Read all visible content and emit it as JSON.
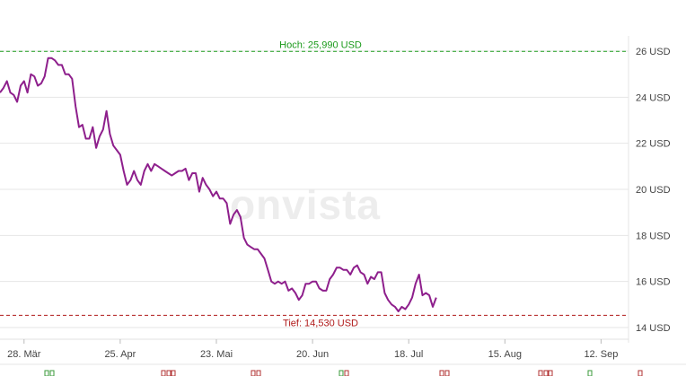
{
  "watermark": "onvista",
  "chart_data": {
    "type": "line",
    "currency_unit": "USD",
    "line_color": "#8e1f8c",
    "high": {
      "value": 25.99,
      "label": "Hoch: 25,990 USD",
      "color": "#1a9a1a"
    },
    "low": {
      "value": 14.53,
      "label": "Tief: 14,530 USD",
      "color": "#b01a1a"
    },
    "ylim": [
      14,
      26
    ],
    "y_ticks": [
      {
        "value": 26,
        "label": "26 USD"
      },
      {
        "value": 24,
        "label": "24 USD"
      },
      {
        "value": 22,
        "label": "22 USD"
      },
      {
        "value": 20,
        "label": "20 USD"
      },
      {
        "value": 18,
        "label": "18 USD"
      },
      {
        "value": 16,
        "label": "16 USD"
      },
      {
        "value": 14,
        "label": "14 USD"
      }
    ],
    "x_range": [
      "2024-03-21",
      "2024-09-20"
    ],
    "x_ticks": [
      {
        "date": "2024-03-28",
        "label": "28. Mär"
      },
      {
        "date": "2024-04-25",
        "label": "25. Apr"
      },
      {
        "date": "2024-05-23",
        "label": "23. Mai"
      },
      {
        "date": "2024-06-20",
        "label": "20. Jun"
      },
      {
        "date": "2024-07-18",
        "label": "18. Jul"
      },
      {
        "date": "2024-08-15",
        "label": "15. Aug"
      },
      {
        "date": "2024-09-12",
        "label": "12. Sep"
      }
    ],
    "grid": true,
    "series": [
      {
        "points": [
          [
            "2024-03-21",
            24.2
          ],
          [
            "2024-03-22",
            24.4
          ],
          [
            "2024-03-23",
            24.7
          ],
          [
            "2024-03-24",
            24.2
          ],
          [
            "2024-03-25",
            24.1
          ],
          [
            "2024-03-26",
            23.8
          ],
          [
            "2024-03-27",
            24.5
          ],
          [
            "2024-03-28",
            24.7
          ],
          [
            "2024-03-29",
            24.2
          ],
          [
            "2024-03-30",
            25.0
          ],
          [
            "2024-03-31",
            24.9
          ],
          [
            "2024-04-01",
            24.5
          ],
          [
            "2024-04-02",
            24.6
          ],
          [
            "2024-04-03",
            24.9
          ],
          [
            "2024-04-04",
            25.7
          ],
          [
            "2024-04-05",
            25.7
          ],
          [
            "2024-04-06",
            25.6
          ],
          [
            "2024-04-07",
            25.4
          ],
          [
            "2024-04-08",
            25.4
          ],
          [
            "2024-04-09",
            25.0
          ],
          [
            "2024-04-10",
            25.0
          ],
          [
            "2024-04-11",
            24.8
          ],
          [
            "2024-04-12",
            23.6
          ],
          [
            "2024-04-13",
            22.7
          ],
          [
            "2024-04-14",
            22.8
          ],
          [
            "2024-04-15",
            22.2
          ],
          [
            "2024-04-16",
            22.2
          ],
          [
            "2024-04-17",
            22.7
          ],
          [
            "2024-04-18",
            21.8
          ],
          [
            "2024-04-19",
            22.3
          ],
          [
            "2024-04-20",
            22.6
          ],
          [
            "2024-04-21",
            23.4
          ],
          [
            "2024-04-22",
            22.4
          ],
          [
            "2024-04-23",
            21.9
          ],
          [
            "2024-04-24",
            21.7
          ],
          [
            "2024-04-25",
            21.5
          ],
          [
            "2024-04-26",
            20.8
          ],
          [
            "2024-04-27",
            20.2
          ],
          [
            "2024-04-28",
            20.4
          ],
          [
            "2024-04-29",
            20.8
          ],
          [
            "2024-04-30",
            20.4
          ],
          [
            "2024-05-01",
            20.2
          ],
          [
            "2024-05-02",
            20.8
          ],
          [
            "2024-05-03",
            21.1
          ],
          [
            "2024-05-04",
            20.8
          ],
          [
            "2024-05-05",
            21.1
          ],
          [
            "2024-05-06",
            21.0
          ],
          [
            "2024-05-07",
            20.9
          ],
          [
            "2024-05-08",
            20.8
          ],
          [
            "2024-05-09",
            20.7
          ],
          [
            "2024-05-10",
            20.6
          ],
          [
            "2024-05-11",
            20.7
          ],
          [
            "2024-05-12",
            20.8
          ],
          [
            "2024-05-13",
            20.8
          ],
          [
            "2024-05-14",
            20.9
          ],
          [
            "2024-05-15",
            20.4
          ],
          [
            "2024-05-16",
            20.7
          ],
          [
            "2024-05-17",
            20.7
          ],
          [
            "2024-05-18",
            19.9
          ],
          [
            "2024-05-19",
            20.5
          ],
          [
            "2024-05-20",
            20.2
          ],
          [
            "2024-05-21",
            20.0
          ],
          [
            "2024-05-22",
            19.7
          ],
          [
            "2024-05-23",
            19.9
          ],
          [
            "2024-05-24",
            19.6
          ],
          [
            "2024-05-25",
            19.6
          ],
          [
            "2024-05-26",
            19.4
          ],
          [
            "2024-05-27",
            18.5
          ],
          [
            "2024-05-28",
            18.9
          ],
          [
            "2024-05-29",
            19.1
          ],
          [
            "2024-05-30",
            18.8
          ],
          [
            "2024-05-31",
            17.9
          ],
          [
            "2024-06-01",
            17.6
          ],
          [
            "2024-06-02",
            17.5
          ],
          [
            "2024-06-03",
            17.4
          ],
          [
            "2024-06-04",
            17.4
          ],
          [
            "2024-06-05",
            17.2
          ],
          [
            "2024-06-06",
            17.0
          ],
          [
            "2024-06-07",
            16.5
          ],
          [
            "2024-06-08",
            16.0
          ],
          [
            "2024-06-09",
            15.9
          ],
          [
            "2024-06-10",
            16.0
          ],
          [
            "2024-06-11",
            15.9
          ],
          [
            "2024-06-12",
            16.0
          ],
          [
            "2024-06-13",
            15.6
          ],
          [
            "2024-06-14",
            15.7
          ],
          [
            "2024-06-15",
            15.5
          ],
          [
            "2024-06-16",
            15.2
          ],
          [
            "2024-06-17",
            15.4
          ],
          [
            "2024-06-18",
            15.9
          ],
          [
            "2024-06-19",
            15.9
          ],
          [
            "2024-06-20",
            16.0
          ],
          [
            "2024-06-21",
            16.0
          ],
          [
            "2024-06-22",
            15.7
          ],
          [
            "2024-06-23",
            15.6
          ],
          [
            "2024-06-24",
            15.6
          ],
          [
            "2024-06-25",
            16.1
          ],
          [
            "2024-06-26",
            16.3
          ],
          [
            "2024-06-27",
            16.6
          ],
          [
            "2024-06-28",
            16.6
          ],
          [
            "2024-06-29",
            16.5
          ],
          [
            "2024-06-30",
            16.5
          ],
          [
            "2024-07-01",
            16.3
          ],
          [
            "2024-07-02",
            16.6
          ],
          [
            "2024-07-03",
            16.7
          ],
          [
            "2024-07-04",
            16.4
          ],
          [
            "2024-07-05",
            16.3
          ],
          [
            "2024-07-06",
            15.9
          ],
          [
            "2024-07-07",
            16.2
          ],
          [
            "2024-07-08",
            16.1
          ],
          [
            "2024-07-09",
            16.4
          ],
          [
            "2024-07-10",
            16.4
          ],
          [
            "2024-07-11",
            15.5
          ],
          [
            "2024-07-12",
            15.2
          ],
          [
            "2024-07-13",
            15.0
          ],
          [
            "2024-07-14",
            14.9
          ],
          [
            "2024-07-15",
            14.7
          ],
          [
            "2024-07-16",
            14.9
          ],
          [
            "2024-07-17",
            14.8
          ],
          [
            "2024-07-18",
            15.0
          ],
          [
            "2024-07-19",
            15.3
          ],
          [
            "2024-07-20",
            15.9
          ],
          [
            "2024-07-21",
            16.3
          ],
          [
            "2024-07-22",
            15.4
          ],
          [
            "2024-07-23",
            15.5
          ],
          [
            "2024-07-24",
            15.4
          ],
          [
            "2024-07-25",
            14.9
          ],
          [
            "2024-07-26",
            15.3
          ]
        ]
      }
    ]
  }
}
